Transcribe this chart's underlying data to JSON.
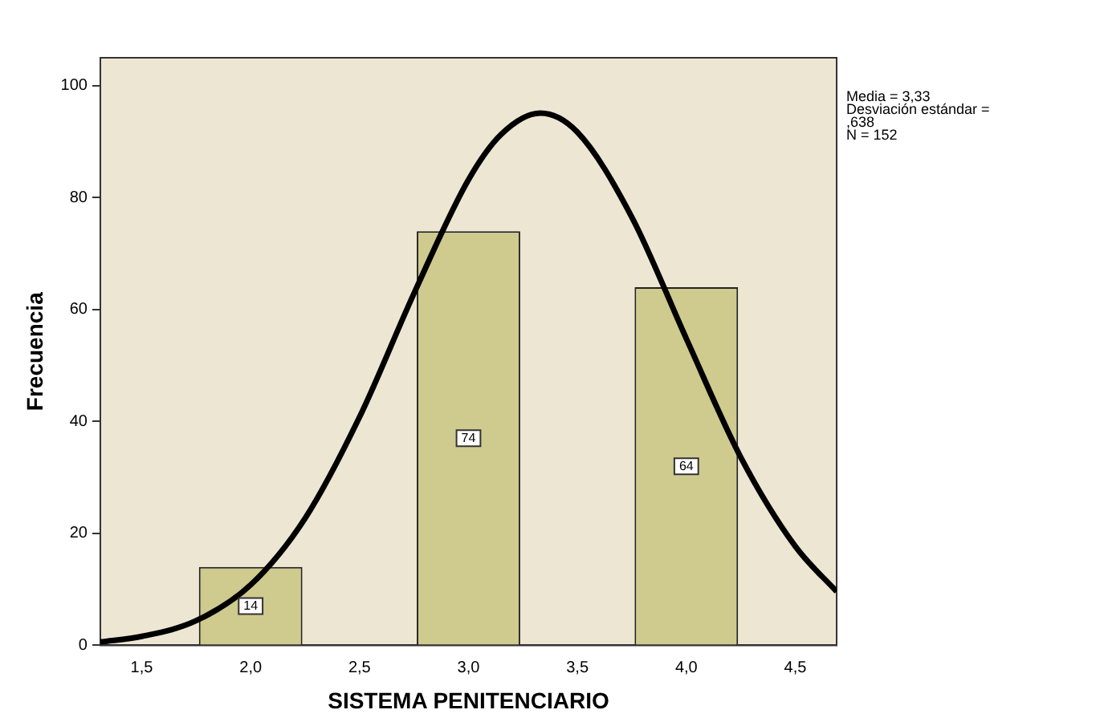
{
  "chart_data": {
    "type": "histogram",
    "xlabel": "SISTEMA PENITENCIARIO",
    "ylabel": "Frecuencia",
    "bins": [
      1.5,
      2.5,
      3.5,
      4.5
    ],
    "values": [
      14,
      74,
      64
    ],
    "color": "#cfca8e",
    "value_labels": [
      "14",
      "74",
      "64"
    ],
    "series": [
      {
        "type": "line",
        "color": "#000000",
        "marker": "none",
        "x": [
          1.31,
          1.5,
          1.75,
          2.0,
          2.25,
          2.5,
          2.75,
          3.0,
          3.15,
          3.33,
          3.5,
          3.75,
          4.0,
          4.25,
          4.5,
          4.69
        ],
        "values": [
          0.6,
          1.6,
          4.4,
          10.8,
          22.7,
          40.8,
          62.9,
          83.2,
          91.3,
          95.1,
          91.7,
          76.5,
          54.8,
          33.6,
          17.7,
          9.6
        ]
      }
    ],
    "xlim": [
      1.31,
      4.69
    ],
    "ylim": [
      0,
      105
    ],
    "xticks": [
      {
        "value": 1.5,
        "label": "1,5"
      },
      {
        "value": 2.0,
        "label": "2,0"
      },
      {
        "value": 2.5,
        "label": "2,5"
      },
      {
        "value": 3.0,
        "label": "3,0"
      },
      {
        "value": 3.5,
        "label": "3,5"
      },
      {
        "value": 4.0,
        "label": "4,0"
      },
      {
        "value": 4.5,
        "label": "4,5"
      }
    ],
    "yticks": [
      0,
      20,
      40,
      60,
      80,
      100
    ],
    "annotations": [
      "Media = 3,33",
      "Desviación estándar = ,638",
      "N = 152"
    ],
    "grid": false,
    "legend": false
  }
}
